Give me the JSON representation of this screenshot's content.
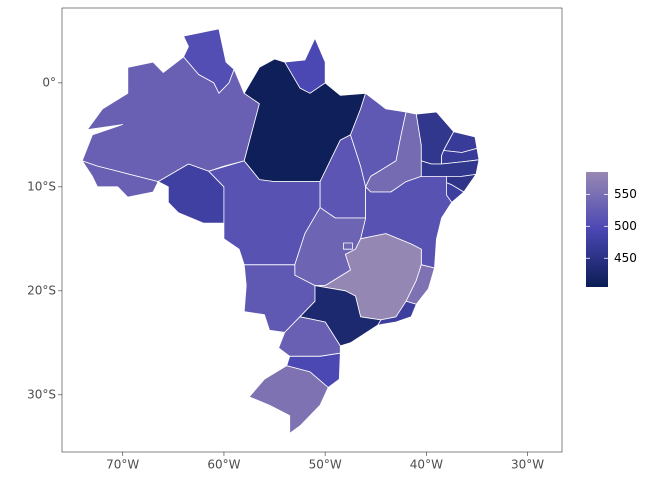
{
  "chart_data": {
    "type": "choropleth",
    "values": [
      505,
      495,
      530,
      530,
      480,
      409,
      510,
      515,
      520,
      545,
      460,
      470,
      470,
      460,
      455,
      475,
      510,
      535,
      540,
      520,
      583,
      555,
      475,
      430,
      530,
      495,
      555
    ],
    "xlim": [
      -76,
      -26.6
    ],
    "ylim": [
      -35.5,
      7.2
    ],
    "xticks": [
      {
        "value": -70,
        "label": "70°W"
      },
      {
        "value": -60,
        "label": "60°W"
      },
      {
        "value": -50,
        "label": "50°W"
      },
      {
        "value": -40,
        "label": "40°W"
      },
      {
        "value": -30,
        "label": "30°W"
      }
    ],
    "yticks": [
      {
        "value": 0,
        "label": "0°"
      },
      {
        "value": -10,
        "label": "10°S"
      },
      {
        "value": -20,
        "label": "20°S"
      },
      {
        "value": -30,
        "label": "30°S"
      }
    ],
    "colorbar": {
      "lim": [
        405,
        585
      ],
      "ticks": [
        450,
        500,
        550
      ],
      "colors": [
        "#0b1d55",
        "#4b47b3",
        "#9788b3"
      ]
    }
  }
}
